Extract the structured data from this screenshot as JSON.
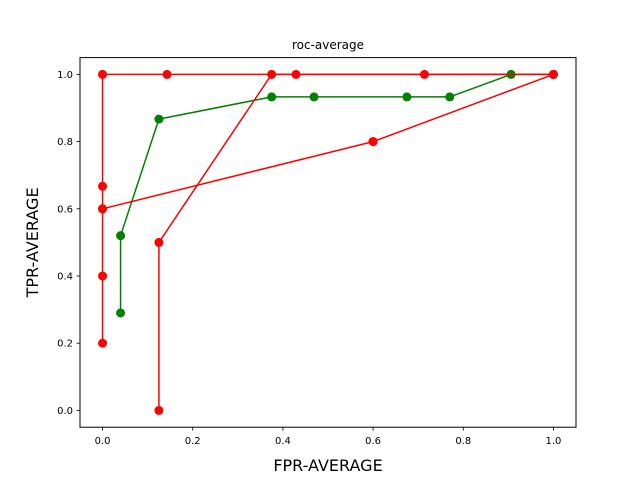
{
  "chart_data": {
    "type": "line",
    "title": "roc-average",
    "xlabel": "FPR-AVERAGE",
    "ylabel": "TPR-AVERAGE",
    "xlim": [
      -0.05,
      1.05
    ],
    "ylim": [
      -0.05,
      1.05
    ],
    "xticks": [
      0.0,
      0.2,
      0.4,
      0.6,
      0.8,
      1.0
    ],
    "yticks": [
      0.0,
      0.2,
      0.4,
      0.6,
      0.8,
      1.0
    ],
    "tick_labels_x": [
      "0.0",
      "0.2",
      "0.4",
      "0.6",
      "0.8",
      "1.0"
    ],
    "tick_labels_y": [
      "0.0",
      "0.2",
      "0.4",
      "0.6",
      "0.8",
      "1.0"
    ],
    "grid": false,
    "series": [
      {
        "color": "#ff0000",
        "x": [
          0.0,
          0.0,
          0.0,
          0.0,
          0.0,
          0.143,
          0.429,
          0.714,
          1.0
        ],
        "y": [
          0.2,
          0.4,
          0.6,
          0.667,
          1.0,
          1.0,
          1.0,
          1.0,
          1.0
        ]
      },
      {
        "color": "#008000",
        "x": [
          0.04,
          0.04,
          0.125,
          0.375,
          0.469,
          0.675,
          0.77,
          0.906,
          1.0
        ],
        "y": [
          0.29,
          0.52,
          0.867,
          0.933,
          0.933,
          0.933,
          0.933,
          1.0,
          1.0
        ]
      },
      {
        "color": "#ff0000",
        "x": [
          0.125,
          0.125,
          0.375,
          1.0
        ],
        "y": [
          0.0,
          0.5,
          1.0,
          1.0
        ]
      },
      {
        "color": "#ff0000",
        "x": [
          0.0,
          0.6,
          0.6,
          1.0
        ],
        "y": [
          0.6,
          0.8,
          0.8,
          1.0
        ]
      }
    ]
  }
}
